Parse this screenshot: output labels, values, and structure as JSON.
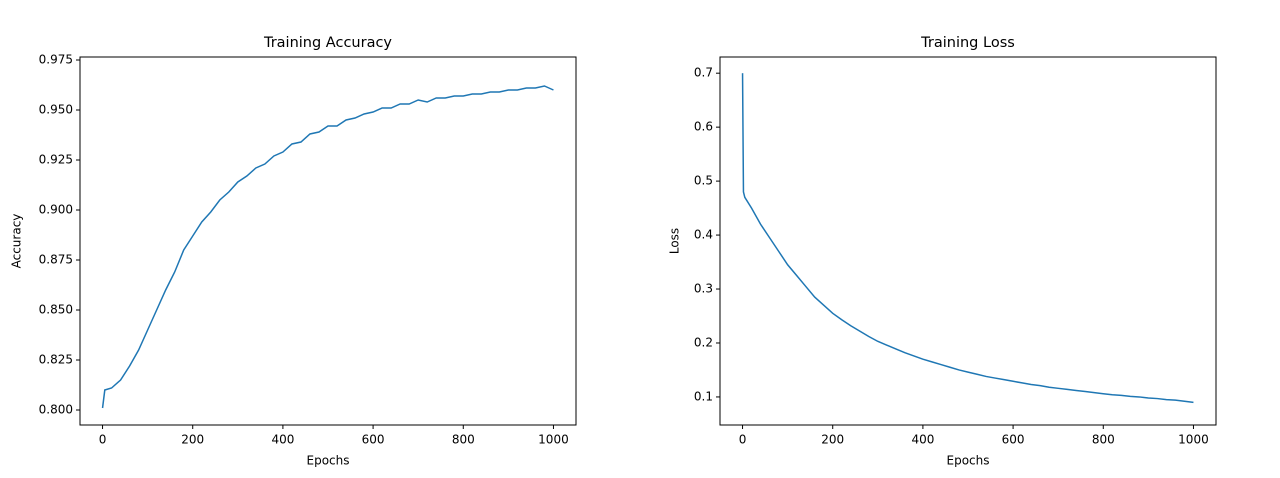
{
  "chart_data": [
    {
      "type": "line",
      "title": "Training Accuracy",
      "xlabel": "Epochs",
      "ylabel": "Accuracy",
      "color": "#1f77b4",
      "x": [
        0,
        5,
        20,
        40,
        60,
        80,
        100,
        120,
        140,
        160,
        180,
        200,
        220,
        240,
        260,
        280,
        300,
        320,
        340,
        360,
        380,
        400,
        420,
        440,
        460,
        480,
        500,
        520,
        540,
        560,
        580,
        600,
        620,
        640,
        660,
        680,
        700,
        720,
        740,
        760,
        780,
        800,
        820,
        840,
        860,
        880,
        900,
        920,
        940,
        960,
        980,
        1000
      ],
      "values": [
        0.801,
        0.81,
        0.811,
        0.815,
        0.822,
        0.83,
        0.84,
        0.85,
        0.86,
        0.869,
        0.88,
        0.887,
        0.894,
        0.899,
        0.905,
        0.909,
        0.914,
        0.917,
        0.921,
        0.923,
        0.927,
        0.929,
        0.933,
        0.934,
        0.938,
        0.939,
        0.942,
        0.942,
        0.945,
        0.946,
        0.948,
        0.949,
        0.951,
        0.951,
        0.953,
        0.953,
        0.955,
        0.954,
        0.956,
        0.956,
        0.957,
        0.957,
        0.958,
        0.958,
        0.959,
        0.959,
        0.96,
        0.96,
        0.961,
        0.961,
        0.962,
        0.96
      ],
      "xlim": [
        -50,
        1050
      ],
      "xticks": [
        0,
        200,
        400,
        600,
        800,
        1000
      ],
      "ylim": [
        0.7925,
        0.9765
      ],
      "yticks": [
        {
          "value": 0.8,
          "label": "0.800"
        },
        {
          "value": 0.825,
          "label": "0.825"
        },
        {
          "value": 0.85,
          "label": "0.850"
        },
        {
          "value": 0.875,
          "label": "0.875"
        },
        {
          "value": 0.9,
          "label": "0.900"
        },
        {
          "value": 0.925,
          "label": "0.925"
        },
        {
          "value": 0.95,
          "label": "0.950"
        },
        {
          "value": 0.975,
          "label": "0.975"
        }
      ]
    },
    {
      "type": "line",
      "title": "Training Loss",
      "xlabel": "Epochs",
      "ylabel": "Loss",
      "color": "#1f77b4",
      "x": [
        0,
        2,
        5,
        20,
        40,
        60,
        80,
        100,
        120,
        140,
        160,
        180,
        200,
        220,
        240,
        260,
        280,
        300,
        320,
        340,
        360,
        380,
        400,
        420,
        440,
        460,
        480,
        500,
        520,
        540,
        560,
        580,
        600,
        620,
        640,
        660,
        680,
        700,
        720,
        740,
        760,
        780,
        800,
        820,
        840,
        860,
        880,
        900,
        920,
        940,
        960,
        980,
        1000
      ],
      "values": [
        0.7,
        0.48,
        0.47,
        0.45,
        0.42,
        0.395,
        0.37,
        0.345,
        0.325,
        0.305,
        0.285,
        0.27,
        0.255,
        0.243,
        0.232,
        0.222,
        0.212,
        0.203,
        0.196,
        0.189,
        0.182,
        0.176,
        0.17,
        0.165,
        0.16,
        0.155,
        0.15,
        0.146,
        0.142,
        0.138,
        0.135,
        0.132,
        0.129,
        0.126,
        0.123,
        0.121,
        0.118,
        0.116,
        0.114,
        0.112,
        0.11,
        0.108,
        0.106,
        0.104,
        0.103,
        0.101,
        0.1,
        0.098,
        0.097,
        0.095,
        0.094,
        0.092,
        0.09
      ],
      "xlim": [
        -50,
        1050
      ],
      "xticks": [
        0,
        200,
        400,
        600,
        800,
        1000
      ],
      "ylim": [
        0.048,
        0.73
      ],
      "yticks": [
        0.1,
        0.2,
        0.3,
        0.4,
        0.5,
        0.6,
        0.7
      ]
    }
  ]
}
